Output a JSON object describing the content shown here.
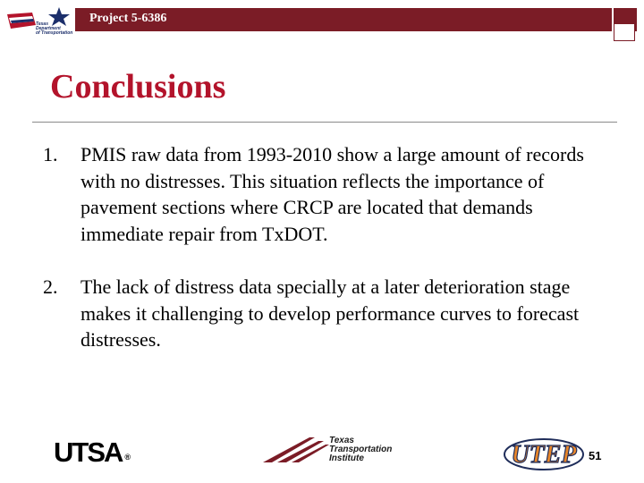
{
  "header": {
    "project": "Project 5-6386",
    "agency_logo_text": "Texas\nDepartment\nof Transportation"
  },
  "slide": {
    "title": "Conclusions",
    "items": [
      {
        "number": "1.",
        "text": "PMIS raw data from 1993-2010 show a large amount of records with no distresses. This situation reflects the importance of pavement sections where CRCP are located that demands immediate repair from TxDOT."
      },
      {
        "number": "2.",
        "text": "The lack of distress data specially at a later deterioration stage makes it challenging to develop performance curves to forecast distresses."
      }
    ]
  },
  "footer": {
    "utsa_logo": "UTSA",
    "utsa_reg": "®",
    "tti_logo": "Texas\nTransportation\nInstitute",
    "utep_logo": "UTEP",
    "page_number": "51"
  },
  "colors": {
    "header_bar": "#7b1c26",
    "title": "#b3132b",
    "txdot_blue": "#1c2f6b",
    "utep_orange": "#e8862a",
    "utep_navy": "#1f2d5a",
    "tti_maroon": "#7b1c26"
  }
}
